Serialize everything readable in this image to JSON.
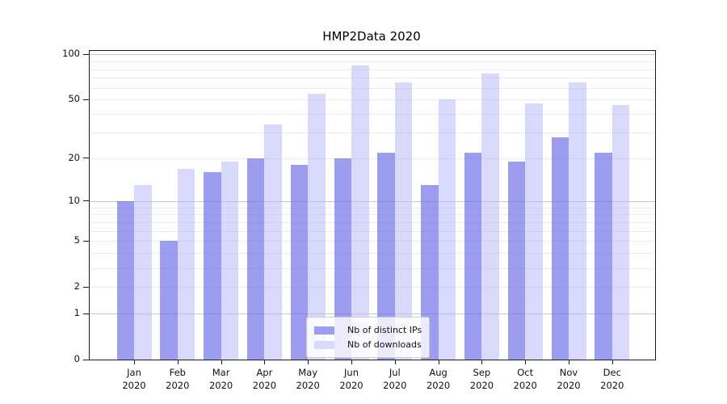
{
  "chart_data": {
    "type": "bar",
    "title": "HMP2Data 2020",
    "categories": [
      {
        "month": "Jan",
        "year": "2020"
      },
      {
        "month": "Feb",
        "year": "2020"
      },
      {
        "month": "Mar",
        "year": "2020"
      },
      {
        "month": "Apr",
        "year": "2020"
      },
      {
        "month": "May",
        "year": "2020"
      },
      {
        "month": "Jun",
        "year": "2020"
      },
      {
        "month": "Jul",
        "year": "2020"
      },
      {
        "month": "Aug",
        "year": "2020"
      },
      {
        "month": "Sep",
        "year": "2020"
      },
      {
        "month": "Oct",
        "year": "2020"
      },
      {
        "month": "Nov",
        "year": "2020"
      },
      {
        "month": "Dec",
        "year": "2020"
      }
    ],
    "series": [
      {
        "name": "Nb of distinct IPs",
        "values": [
          10,
          5,
          16,
          20,
          18,
          20,
          22,
          13,
          22,
          19,
          28,
          22
        ],
        "fill": "rgba(105,105,232,0.65)",
        "swatch": "#9e9ef0"
      },
      {
        "name": "Nb of downloads",
        "values": [
          13,
          17,
          19,
          34,
          55,
          85,
          65,
          50,
          75,
          47,
          65,
          46
        ],
        "fill": "rgba(185,185,248,0.55)",
        "swatch": "#d9d9fb"
      }
    ],
    "yscale": "log1p",
    "ylim": [
      0,
      100
    ],
    "yticks_labeled": [
      0,
      1,
      2,
      5,
      10,
      20,
      50,
      100
    ],
    "grid": {
      "major": [
        1,
        10,
        100
      ],
      "minor": [
        2,
        3,
        4,
        5,
        6,
        7,
        8,
        9,
        20,
        30,
        40,
        50,
        60,
        70,
        80,
        90
      ]
    },
    "legend": {
      "position": "lower center",
      "entries": [
        "Nb of distinct IPs",
        "Nb of downloads"
      ]
    },
    "colors": {
      "grid_major": "#c8c8c8",
      "grid_minor": "#ebebeb",
      "spine": "#1a1a1a",
      "text": "#111111",
      "background": "#ffffff"
    }
  }
}
